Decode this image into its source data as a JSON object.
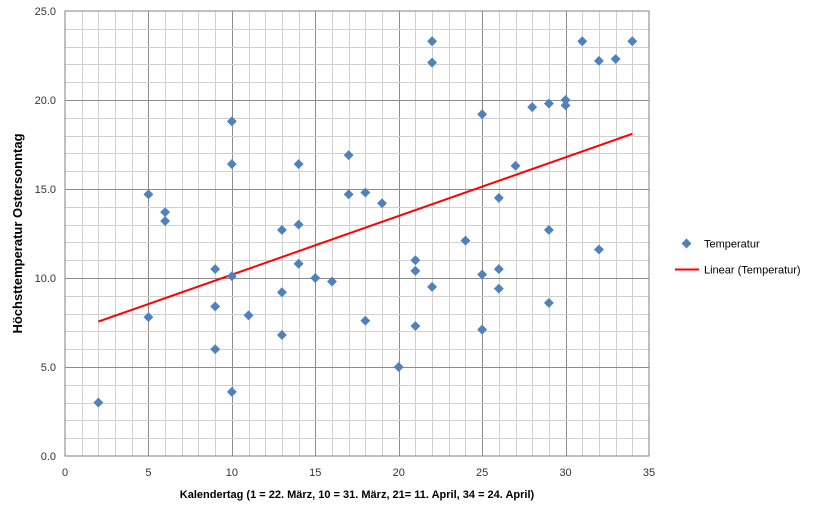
{
  "chart_data": {
    "type": "scatter",
    "xlabel": "Kalendertag (1 = 22. März, 10 = 31. März, 21= 11. April, 34 = 24. April)",
    "ylabel": "Höchsttemperatur Ostersonntag",
    "xlim": [
      0,
      35
    ],
    "ylim": [
      0,
      25
    ],
    "x_ticks": [
      "0",
      "5",
      "10",
      "15",
      "20",
      "25",
      "30",
      "35"
    ],
    "y_ticks": [
      "0.0",
      "5.0",
      "10.0",
      "15.0",
      "20.0",
      "25.0"
    ],
    "grid": true,
    "legend_position": "right",
    "series": [
      {
        "name": "Temperatur",
        "kind": "scatter",
        "color": "#4F81BD",
        "points": [
          [
            2,
            3.0
          ],
          [
            5,
            14.7
          ],
          [
            5,
            7.8
          ],
          [
            6,
            13.7
          ],
          [
            6,
            13.2
          ],
          [
            9,
            10.5
          ],
          [
            9,
            8.4
          ],
          [
            9,
            6.0
          ],
          [
            10,
            18.8
          ],
          [
            10,
            16.4
          ],
          [
            10,
            10.1
          ],
          [
            10,
            3.6
          ],
          [
            11,
            7.9
          ],
          [
            13,
            12.7
          ],
          [
            13,
            9.2
          ],
          [
            13,
            6.8
          ],
          [
            14,
            16.4
          ],
          [
            14,
            13.0
          ],
          [
            14,
            10.8
          ],
          [
            15,
            10.0
          ],
          [
            16,
            9.8
          ],
          [
            17,
            16.9
          ],
          [
            17,
            14.7
          ],
          [
            18,
            14.8
          ],
          [
            18,
            7.6
          ],
          [
            19,
            14.2
          ],
          [
            20,
            5.0
          ],
          [
            21,
            11.0
          ],
          [
            21,
            10.4
          ],
          [
            21,
            7.3
          ],
          [
            22,
            23.3
          ],
          [
            22,
            22.1
          ],
          [
            22,
            9.5
          ],
          [
            24,
            12.1
          ],
          [
            25,
            19.2
          ],
          [
            25,
            10.2
          ],
          [
            25,
            7.1
          ],
          [
            26,
            14.5
          ],
          [
            26,
            10.5
          ],
          [
            26,
            9.4
          ],
          [
            27,
            16.3
          ],
          [
            28,
            19.6
          ],
          [
            29,
            19.8
          ],
          [
            29,
            12.7
          ],
          [
            29,
            8.6
          ],
          [
            30,
            20.0
          ],
          [
            30,
            19.7
          ],
          [
            31,
            23.3
          ],
          [
            32,
            22.2
          ],
          [
            32,
            11.6
          ],
          [
            33,
            22.3
          ],
          [
            34,
            23.3
          ]
        ]
      },
      {
        "name": "Linear (Temperatur)",
        "kind": "trendline",
        "color": "#FF0000",
        "x": [
          2,
          34
        ],
        "y": [
          7.55,
          18.1
        ]
      }
    ]
  }
}
